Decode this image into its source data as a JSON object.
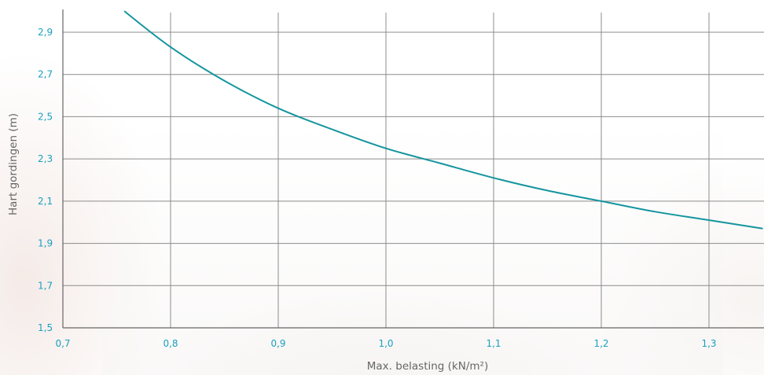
{
  "colors": {
    "accent": "#1aa0bf",
    "curve": "#14959e",
    "grid": "#8c8c8c",
    "text": "#666666"
  },
  "chart_data": {
    "type": "line",
    "xlabel": "Max. belasting (kN/m²)",
    "ylabel": "Hart gordingen (m)",
    "xlim": [
      0.7,
      1.35
    ],
    "ylim": [
      1.5,
      3.0
    ],
    "x_ticks": [
      "0,7",
      "0,8",
      "0,9",
      "1,0",
      "1,1",
      "1,2",
      "1,3"
    ],
    "x_tick_values": [
      0.7,
      0.8,
      0.9,
      1.0,
      1.1,
      1.2,
      1.3
    ],
    "y_ticks": [
      "1,5",
      "1,7",
      "1,9",
      "2,1",
      "2,3",
      "2,5",
      "2,7",
      "2,9"
    ],
    "y_tick_values": [
      1.5,
      1.7,
      1.9,
      2.1,
      2.3,
      2.5,
      2.7,
      2.9
    ],
    "grid": true,
    "series": [
      {
        "x": [
          0.757,
          0.8,
          0.85,
          0.9,
          0.95,
          1.0,
          1.05,
          1.1,
          1.15,
          1.2,
          1.25,
          1.3,
          1.35
        ],
        "y": [
          3.0,
          2.83,
          2.67,
          2.54,
          2.44,
          2.35,
          2.28,
          2.21,
          2.15,
          2.1,
          2.05,
          2.01,
          1.97
        ]
      }
    ]
  }
}
